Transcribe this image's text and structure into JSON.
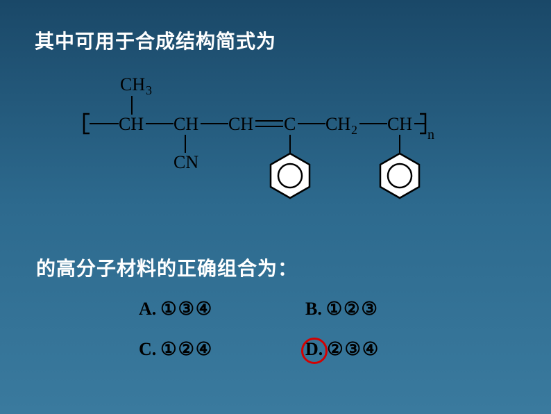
{
  "heading1": "其中可用于合成结构简式为",
  "heading2": "的高分子材料的正确组合为：",
  "structure": {
    "colors": {
      "stroke": "#000000",
      "stroke_width": 2,
      "fill_bg": "#ffffff",
      "text": "#000000"
    },
    "font_family": "Times New Roman",
    "atoms": {
      "ch3": "CH",
      "ch3_sub": "3",
      "ch": "CH",
      "c": "C",
      "cn": "CN",
      "ch2": "CH",
      "ch2_sub": "2",
      "subscript_n": "n"
    }
  },
  "options": {
    "A": {
      "letter": "A.",
      "nums": "①③④"
    },
    "B": {
      "letter": "B.",
      "nums": "①②③"
    },
    "C": {
      "letter": "C.",
      "nums": "①②④"
    },
    "D": {
      "letter": "D.",
      "nums": "②③④"
    }
  },
  "answer_circle": {
    "color": "#d40000",
    "target": "D"
  },
  "text_colors": {
    "heading": "#ffffff",
    "options": "#000000"
  }
}
